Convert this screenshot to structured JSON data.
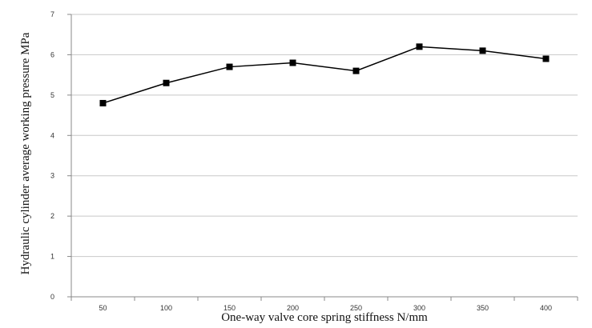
{
  "chart_data": {
    "type": "line",
    "title": "",
    "xlabel": "One-way valve core spring stiffness N/mm",
    "ylabel": "Hydraulic cylinder average working pressure MPa",
    "categories": [
      "50",
      "100",
      "150",
      "200",
      "250",
      "300",
      "350",
      "400"
    ],
    "series": [
      {
        "values": [
          4.8,
          5.3,
          5.7,
          5.8,
          5.6,
          6.2,
          6.1,
          5.9
        ]
      }
    ],
    "ylim": [
      0,
      7
    ],
    "yticks": [
      "0",
      "1",
      "2",
      "3",
      "4",
      "5",
      "6",
      "7"
    ],
    "grid": true,
    "legend": "none",
    "marker": "square",
    "colors": {
      "line": "#000000",
      "grid": "#c8c8c8",
      "axis": "#888888"
    }
  }
}
